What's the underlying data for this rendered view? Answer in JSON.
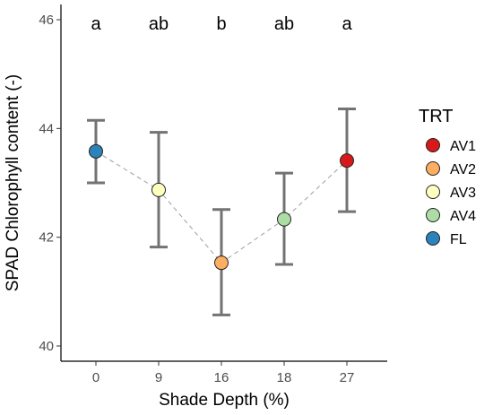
{
  "chart_data": {
    "type": "scatter",
    "xlabel": "Shade Depth (%)",
    "ylabel": "SPAD Chlorophyll content (-)",
    "categories": [
      "0",
      "9",
      "16",
      "18",
      "27"
    ],
    "yticks": [
      "40",
      "42",
      "44",
      "46"
    ],
    "ylim": [
      40,
      46
    ],
    "grid": false,
    "connector": "dashed",
    "points": [
      {
        "x": "0",
        "y": 43.58,
        "err_low": 43.0,
        "err_high": 44.15,
        "group": "FL",
        "sig": "a"
      },
      {
        "x": "9",
        "y": 42.87,
        "err_low": 41.82,
        "err_high": 43.93,
        "group": "AV3",
        "sig": "ab"
      },
      {
        "x": "16",
        "y": 41.53,
        "err_low": 40.57,
        "err_high": 42.51,
        "group": "AV2",
        "sig": "b"
      },
      {
        "x": "18",
        "y": 42.33,
        "err_low": 41.5,
        "err_high": 43.18,
        "group": "AV4",
        "sig": "ab"
      },
      {
        "x": "27",
        "y": 43.41,
        "err_low": 42.47,
        "err_high": 44.36,
        "group": "AV1",
        "sig": "a"
      }
    ],
    "legend": {
      "title": "TRT",
      "placement": "right",
      "entries": [
        {
          "name": "AV1",
          "color": "#d7191c"
        },
        {
          "name": "AV2",
          "color": "#fdae61"
        },
        {
          "name": "AV3",
          "color": "#ffffbf"
        },
        {
          "name": "AV4",
          "color": "#abdda4"
        },
        {
          "name": "FL",
          "color": "#2b83ba"
        }
      ]
    },
    "colors": {
      "errorbar": "#737373",
      "connector": "#a6a6a6",
      "axis": "#000000"
    }
  }
}
